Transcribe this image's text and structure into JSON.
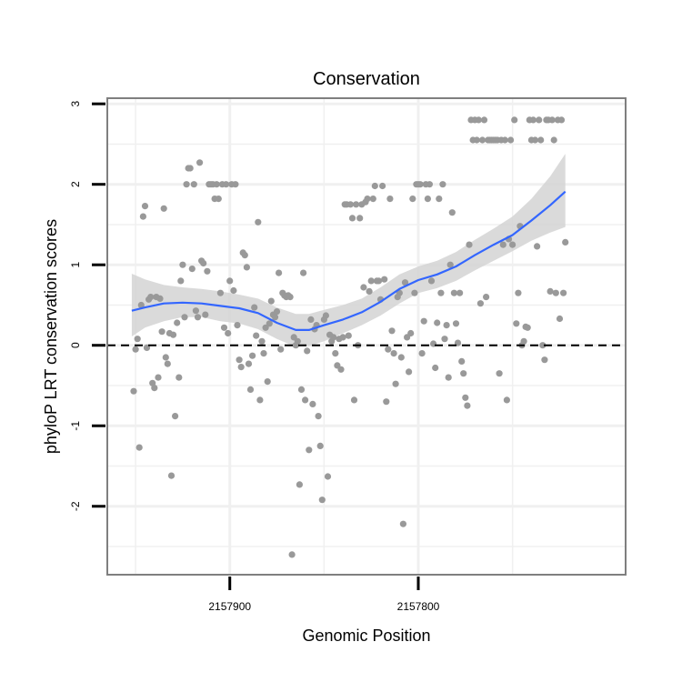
{
  "chart_data": {
    "type": "scatter",
    "title": "Conservation",
    "xlabel": "Genomic Position",
    "ylabel": "phyloP LRT conservation scores",
    "x_axis_reversed": true,
    "xlim": [
      2157965,
      2157690
    ],
    "ylim": [
      -2.85,
      3.07
    ],
    "x_ticks": [
      {
        "value": 2157900,
        "label": "2157900"
      },
      {
        "value": 2157800,
        "label": "2157800"
      }
    ],
    "y_ticks": [
      {
        "value": 3,
        "label": "3"
      },
      {
        "value": 2,
        "label": "2"
      },
      {
        "value": 1,
        "label": "1"
      },
      {
        "value": 0,
        "label": "0"
      },
      {
        "value": -1,
        "label": "-1"
      },
      {
        "value": -2,
        "label": "-2"
      }
    ],
    "x_minor_gridlines": [
      2157950,
      2157850,
      2157750
    ],
    "y_minor_gridlines": [
      2.5,
      1.5,
      0.5,
      -0.5,
      -1.5,
      -2.5
    ],
    "reference_line": {
      "y": 0,
      "style": "dashed",
      "color": "#000000"
    },
    "grid": true,
    "colors": {
      "points": "#999999",
      "smooth_line": "#3366FF",
      "confidence_band": "#D3D3D3",
      "grid": "#F0F0F0",
      "panel_border": "#7F7F7F"
    },
    "points": [
      {
        "x": 2157951,
        "y": -0.57
      },
      {
        "x": 2157950,
        "y": -0.05
      },
      {
        "x": 2157949,
        "y": 0.08
      },
      {
        "x": 2157948,
        "y": -1.27
      },
      {
        "x": 2157947,
        "y": 0.5
      },
      {
        "x": 2157946,
        "y": 1.6
      },
      {
        "x": 2157945,
        "y": 1.73
      },
      {
        "x": 2157944,
        "y": -0.03
      },
      {
        "x": 2157943,
        "y": 0.57
      },
      {
        "x": 2157942,
        "y": 0.6
      },
      {
        "x": 2157941,
        "y": -0.47
      },
      {
        "x": 2157940,
        "y": -0.53
      },
      {
        "x": 2157939,
        "y": 0.6
      },
      {
        "x": 2157938,
        "y": -0.4
      },
      {
        "x": 2157937,
        "y": 0.58
      },
      {
        "x": 2157936,
        "y": 0.17
      },
      {
        "x": 2157935,
        "y": 1.7
      },
      {
        "x": 2157934,
        "y": -0.15
      },
      {
        "x": 2157933,
        "y": -0.23
      },
      {
        "x": 2157932,
        "y": 0.15
      },
      {
        "x": 2157931,
        "y": -1.62
      },
      {
        "x": 2157930,
        "y": 0.13
      },
      {
        "x": 2157929,
        "y": -0.88
      },
      {
        "x": 2157928,
        "y": 0.28
      },
      {
        "x": 2157927,
        "y": -0.4
      },
      {
        "x": 2157926,
        "y": 0.8
      },
      {
        "x": 2157925,
        "y": 1.0
      },
      {
        "x": 2157924,
        "y": 0.35
      },
      {
        "x": 2157923,
        "y": 2.0
      },
      {
        "x": 2157922,
        "y": 2.2
      },
      {
        "x": 2157921,
        "y": 2.2
      },
      {
        "x": 2157920,
        "y": 0.95
      },
      {
        "x": 2157919,
        "y": 2.0
      },
      {
        "x": 2157918,
        "y": 0.43
      },
      {
        "x": 2157917,
        "y": 0.35
      },
      {
        "x": 2157916,
        "y": 2.27
      },
      {
        "x": 2157915,
        "y": 1.05
      },
      {
        "x": 2157914,
        "y": 1.02
      },
      {
        "x": 2157913,
        "y": 0.38
      },
      {
        "x": 2157912,
        "y": 0.92
      },
      {
        "x": 2157911,
        "y": 2.0
      },
      {
        "x": 2157910,
        "y": 2.0
      },
      {
        "x": 2157909,
        "y": 2.0
      },
      {
        "x": 2157908,
        "y": 1.82
      },
      {
        "x": 2157907,
        "y": 2.0
      },
      {
        "x": 2157906,
        "y": 1.82
      },
      {
        "x": 2157905,
        "y": 0.65
      },
      {
        "x": 2157904,
        "y": 2.0
      },
      {
        "x": 2157903,
        "y": 0.22
      },
      {
        "x": 2157902,
        "y": 2.0
      },
      {
        "x": 2157901,
        "y": 0.15
      },
      {
        "x": 2157900,
        "y": 0.8
      },
      {
        "x": 2157899,
        "y": 2.0
      },
      {
        "x": 2157898,
        "y": 0.68
      },
      {
        "x": 2157897,
        "y": 2.0
      },
      {
        "x": 2157896,
        "y": 0.25
      },
      {
        "x": 2157895,
        "y": -0.18
      },
      {
        "x": 2157894,
        "y": -0.27
      },
      {
        "x": 2157893,
        "y": 1.15
      },
      {
        "x": 2157892,
        "y": 1.12
      },
      {
        "x": 2157891,
        "y": 0.97
      },
      {
        "x": 2157890,
        "y": -0.23
      },
      {
        "x": 2157889,
        "y": -0.55
      },
      {
        "x": 2157888,
        "y": -0.13
      },
      {
        "x": 2157887,
        "y": 0.47
      },
      {
        "x": 2157886,
        "y": 0.12
      },
      {
        "x": 2157885,
        "y": 1.53
      },
      {
        "x": 2157884,
        "y": -0.68
      },
      {
        "x": 2157883,
        "y": 0.05
      },
      {
        "x": 2157882,
        "y": -0.1
      },
      {
        "x": 2157881,
        "y": 0.22
      },
      {
        "x": 2157880,
        "y": -0.45
      },
      {
        "x": 2157879,
        "y": 0.27
      },
      {
        "x": 2157878,
        "y": 0.55
      },
      {
        "x": 2157877,
        "y": 0.38
      },
      {
        "x": 2157876,
        "y": 0.35
      },
      {
        "x": 2157875,
        "y": 0.42
      },
      {
        "x": 2157874,
        "y": 0.9
      },
      {
        "x": 2157873,
        "y": -0.05
      },
      {
        "x": 2157872,
        "y": 0.65
      },
      {
        "x": 2157871,
        "y": 0.62
      },
      {
        "x": 2157870,
        "y": 0.6
      },
      {
        "x": 2157869,
        "y": 0.62
      },
      {
        "x": 2157868,
        "y": 0.6
      },
      {
        "x": 2157867,
        "y": -2.6
      },
      {
        "x": 2157866,
        "y": 0.1
      },
      {
        "x": 2157865,
        "y": -0.0
      },
      {
        "x": 2157864,
        "y": 0.05
      },
      {
        "x": 2157863,
        "y": -1.73
      },
      {
        "x": 2157862,
        "y": -0.55
      },
      {
        "x": 2157861,
        "y": 0.9
      },
      {
        "x": 2157860,
        "y": -0.68
      },
      {
        "x": 2157859,
        "y": -0.07
      },
      {
        "x": 2157858,
        "y": -1.3
      },
      {
        "x": 2157857,
        "y": 0.32
      },
      {
        "x": 2157856,
        "y": -0.73
      },
      {
        "x": 2157855,
        "y": 0.2
      },
      {
        "x": 2157854,
        "y": 0.25
      },
      {
        "x": 2157853,
        "y": -0.88
      },
      {
        "x": 2157852,
        "y": -1.25
      },
      {
        "x": 2157851,
        "y": -1.92
      },
      {
        "x": 2157850,
        "y": 0.32
      },
      {
        "x": 2157849,
        "y": 0.37
      },
      {
        "x": 2157848,
        "y": -1.63
      },
      {
        "x": 2157847,
        "y": 0.13
      },
      {
        "x": 2157846,
        "y": 0.05
      },
      {
        "x": 2157845,
        "y": 0.1
      },
      {
        "x": 2157844,
        "y": -0.1
      },
      {
        "x": 2157843,
        "y": -0.25
      },
      {
        "x": 2157842,
        "y": 0.08
      },
      {
        "x": 2157841,
        "y": -0.3
      },
      {
        "x": 2157840,
        "y": 0.1
      },
      {
        "x": 2157839,
        "y": 1.75
      },
      {
        "x": 2157838,
        "y": 1.75
      },
      {
        "x": 2157837,
        "y": 0.12
      },
      {
        "x": 2157836,
        "y": 1.75
      },
      {
        "x": 2157835,
        "y": 1.58
      },
      {
        "x": 2157834,
        "y": -0.68
      },
      {
        "x": 2157833,
        "y": 1.75
      },
      {
        "x": 2157832,
        "y": 0.0
      },
      {
        "x": 2157831,
        "y": 1.58
      },
      {
        "x": 2157830,
        "y": 1.75
      },
      {
        "x": 2157829,
        "y": 0.72
      },
      {
        "x": 2157828,
        "y": 1.78
      },
      {
        "x": 2157827,
        "y": 1.82
      },
      {
        "x": 2157826,
        "y": 0.67
      },
      {
        "x": 2157825,
        "y": 0.8
      },
      {
        "x": 2157824,
        "y": 1.82
      },
      {
        "x": 2157823,
        "y": 1.98
      },
      {
        "x": 2157822,
        "y": 0.8
      },
      {
        "x": 2157821,
        "y": 0.8
      },
      {
        "x": 2157820,
        "y": 0.57
      },
      {
        "x": 2157819,
        "y": 1.98
      },
      {
        "x": 2157818,
        "y": 0.82
      },
      {
        "x": 2157817,
        "y": -0.7
      },
      {
        "x": 2157816,
        "y": -0.05
      },
      {
        "x": 2157815,
        "y": 1.82
      },
      {
        "x": 2157814,
        "y": 0.18
      },
      {
        "x": 2157813,
        "y": -0.1
      },
      {
        "x": 2157812,
        "y": -0.48
      },
      {
        "x": 2157811,
        "y": 0.6
      },
      {
        "x": 2157810,
        "y": 0.65
      },
      {
        "x": 2157809,
        "y": -0.15
      },
      {
        "x": 2157808,
        "y": -2.22
      },
      {
        "x": 2157807,
        "y": 0.78
      },
      {
        "x": 2157806,
        "y": 0.1
      },
      {
        "x": 2157805,
        "y": -0.33
      },
      {
        "x": 2157804,
        "y": 0.15
      },
      {
        "x": 2157803,
        "y": 1.82
      },
      {
        "x": 2157802,
        "y": 0.65
      },
      {
        "x": 2157801,
        "y": 2.0
      },
      {
        "x": 2157800,
        "y": 2.0
      },
      {
        "x": 2157799,
        "y": 2.0
      },
      {
        "x": 2157798,
        "y": -0.1
      },
      {
        "x": 2157797,
        "y": 0.3
      },
      {
        "x": 2157796,
        "y": 2.0
      },
      {
        "x": 2157795,
        "y": 1.82
      },
      {
        "x": 2157794,
        "y": 2.0
      },
      {
        "x": 2157793,
        "y": 0.8
      },
      {
        "x": 2157792,
        "y": 0.02
      },
      {
        "x": 2157791,
        "y": -0.28
      },
      {
        "x": 2157790,
        "y": 0.28
      },
      {
        "x": 2157789,
        "y": 1.82
      },
      {
        "x": 2157788,
        "y": 0.65
      },
      {
        "x": 2157787,
        "y": 2.0
      },
      {
        "x": 2157786,
        "y": 0.08
      },
      {
        "x": 2157785,
        "y": 0.25
      },
      {
        "x": 2157784,
        "y": -0.4
      },
      {
        "x": 2157783,
        "y": 1.0
      },
      {
        "x": 2157782,
        "y": 1.65
      },
      {
        "x": 2157781,
        "y": 0.65
      },
      {
        "x": 2157780,
        "y": 0.27
      },
      {
        "x": 2157779,
        "y": 0.03
      },
      {
        "x": 2157778,
        "y": 0.65
      },
      {
        "x": 2157777,
        "y": -0.2
      },
      {
        "x": 2157776,
        "y": -0.35
      },
      {
        "x": 2157775,
        "y": -0.65
      },
      {
        "x": 2157774,
        "y": -0.75
      },
      {
        "x": 2157773,
        "y": 1.25
      },
      {
        "x": 2157772,
        "y": 2.8
      },
      {
        "x": 2157771,
        "y": 2.55
      },
      {
        "x": 2157770,
        "y": 2.8
      },
      {
        "x": 2157769,
        "y": 2.55
      },
      {
        "x": 2157768,
        "y": 2.8
      },
      {
        "x": 2157767,
        "y": 0.52
      },
      {
        "x": 2157766,
        "y": 2.55
      },
      {
        "x": 2157765,
        "y": 2.8
      },
      {
        "x": 2157764,
        "y": 0.6
      },
      {
        "x": 2157763,
        "y": 2.55
      },
      {
        "x": 2157762,
        "y": 2.55
      },
      {
        "x": 2157761,
        "y": 2.55
      },
      {
        "x": 2157760,
        "y": 2.55
      },
      {
        "x": 2157759,
        "y": 2.55
      },
      {
        "x": 2157758,
        "y": 2.55
      },
      {
        "x": 2157757,
        "y": -0.35
      },
      {
        "x": 2157756,
        "y": 2.55
      },
      {
        "x": 2157755,
        "y": 1.25
      },
      {
        "x": 2157754,
        "y": 2.55
      },
      {
        "x": 2157753,
        "y": -0.68
      },
      {
        "x": 2157752,
        "y": 1.32
      },
      {
        "x": 2157751,
        "y": 2.55
      },
      {
        "x": 2157750,
        "y": 1.25
      },
      {
        "x": 2157749,
        "y": 2.8
      },
      {
        "x": 2157748,
        "y": 0.27
      },
      {
        "x": 2157747,
        "y": 0.65
      },
      {
        "x": 2157746,
        "y": 1.48
      },
      {
        "x": 2157745,
        "y": -0.0
      },
      {
        "x": 2157744,
        "y": 0.05
      },
      {
        "x": 2157743,
        "y": 0.23
      },
      {
        "x": 2157742,
        "y": 0.22
      },
      {
        "x": 2157741,
        "y": 2.8
      },
      {
        "x": 2157740,
        "y": 2.55
      },
      {
        "x": 2157739,
        "y": 2.8
      },
      {
        "x": 2157738,
        "y": 2.55
      },
      {
        "x": 2157737,
        "y": 1.23
      },
      {
        "x": 2157736,
        "y": 2.8
      },
      {
        "x": 2157735,
        "y": 2.55
      },
      {
        "x": 2157734,
        "y": 0.0
      },
      {
        "x": 2157733,
        "y": -0.18
      },
      {
        "x": 2157732,
        "y": 2.8
      },
      {
        "x": 2157731,
        "y": 2.8
      },
      {
        "x": 2157730,
        "y": 0.67
      },
      {
        "x": 2157729,
        "y": 2.8
      },
      {
        "x": 2157728,
        "y": 2.55
      },
      {
        "x": 2157727,
        "y": 0.65
      },
      {
        "x": 2157726,
        "y": 2.8
      },
      {
        "x": 2157725,
        "y": 0.33
      },
      {
        "x": 2157724,
        "y": 2.8
      },
      {
        "x": 2157723,
        "y": 0.65
      },
      {
        "x": 2157722,
        "y": 1.28
      }
    ],
    "smooth_fit": [
      {
        "x": 2157952,
        "y": 0.43,
        "lower": 0.11,
        "upper": 0.89
      },
      {
        "x": 2157945,
        "y": 0.47,
        "lower": 0.22,
        "upper": 0.82
      },
      {
        "x": 2157935,
        "y": 0.52,
        "lower": 0.3,
        "upper": 0.75
      },
      {
        "x": 2157925,
        "y": 0.53,
        "lower": 0.35,
        "upper": 0.72
      },
      {
        "x": 2157915,
        "y": 0.52,
        "lower": 0.35,
        "upper": 0.7
      },
      {
        "x": 2157905,
        "y": 0.49,
        "lower": 0.3,
        "upper": 0.67
      },
      {
        "x": 2157895,
        "y": 0.46,
        "lower": 0.27,
        "upper": 0.63
      },
      {
        "x": 2157885,
        "y": 0.4,
        "lower": 0.2,
        "upper": 0.58
      },
      {
        "x": 2157875,
        "y": 0.28,
        "lower": 0.08,
        "upper": 0.47
      },
      {
        "x": 2157865,
        "y": 0.19,
        "lower": -0.02,
        "upper": 0.39
      },
      {
        "x": 2157858,
        "y": 0.19,
        "lower": -0.01,
        "upper": 0.39
      },
      {
        "x": 2157850,
        "y": 0.25,
        "lower": 0.05,
        "upper": 0.44
      },
      {
        "x": 2157840,
        "y": 0.32,
        "lower": 0.15,
        "upper": 0.5
      },
      {
        "x": 2157830,
        "y": 0.41,
        "lower": 0.25,
        "upper": 0.58
      },
      {
        "x": 2157820,
        "y": 0.54,
        "lower": 0.37,
        "upper": 0.72
      },
      {
        "x": 2157810,
        "y": 0.7,
        "lower": 0.52,
        "upper": 0.88
      },
      {
        "x": 2157800,
        "y": 0.81,
        "lower": 0.65,
        "upper": 0.98
      },
      {
        "x": 2157790,
        "y": 0.88,
        "lower": 0.71,
        "upper": 1.05
      },
      {
        "x": 2157780,
        "y": 0.98,
        "lower": 0.8,
        "upper": 1.16
      },
      {
        "x": 2157770,
        "y": 1.12,
        "lower": 0.93,
        "upper": 1.31
      },
      {
        "x": 2157760,
        "y": 1.25,
        "lower": 1.05,
        "upper": 1.45
      },
      {
        "x": 2157750,
        "y": 1.37,
        "lower": 1.17,
        "upper": 1.6
      },
      {
        "x": 2157740,
        "y": 1.55,
        "lower": 1.3,
        "upper": 1.82
      },
      {
        "x": 2157730,
        "y": 1.74,
        "lower": 1.4,
        "upper": 2.1
      },
      {
        "x": 2157722,
        "y": 1.91,
        "lower": 1.47,
        "upper": 2.38
      }
    ]
  }
}
